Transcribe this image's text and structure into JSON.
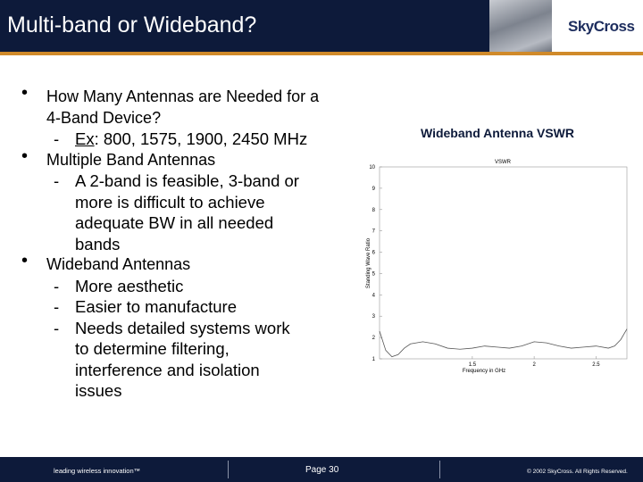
{
  "header": {
    "title": "Multi-band or Wideband?",
    "logo": "SkyCross"
  },
  "bullets": [
    {
      "text": "How Many Antennas are Needed for a 4-Band Device?",
      "sub": [
        {
          "prefix": "Ex",
          "text": ": 800, 1575, 1900, 2450 MHz"
        }
      ]
    },
    {
      "text": "Multiple Band Antennas",
      "sub": [
        {
          "text": "A 2-band is feasible, 3-band or more is difficult to achieve adequate BW in all needed bands"
        }
      ]
    },
    {
      "text": "Wideband Antennas",
      "sub": [
        {
          "text": "More aesthetic"
        },
        {
          "text": "Easier to manufacture"
        },
        {
          "text": "Needs detailed systems work to determine filtering, interference and isolation issues"
        }
      ]
    }
  ],
  "chart_data": {
    "type": "line",
    "title": "Wideband Antenna VSWR",
    "plot_title": "VSWR",
    "xlabel": "Frequency in GHz",
    "ylabel": "Standing Wave Ratio",
    "color": "#555555",
    "x": [
      0.75,
      0.8,
      0.85,
      0.9,
      0.95,
      1.0,
      1.1,
      1.2,
      1.3,
      1.4,
      1.5,
      1.6,
      1.7,
      1.8,
      1.9,
      2.0,
      2.1,
      2.2,
      2.3,
      2.4,
      2.5,
      2.6,
      2.65,
      2.7,
      2.75
    ],
    "values": [
      2.3,
      1.4,
      1.1,
      1.2,
      1.5,
      1.7,
      1.8,
      1.7,
      1.5,
      1.45,
      1.5,
      1.6,
      1.55,
      1.5,
      1.6,
      1.8,
      1.75,
      1.6,
      1.5,
      1.55,
      1.6,
      1.5,
      1.6,
      1.9,
      2.4
    ],
    "xlim": [
      0.75,
      2.75
    ],
    "xticks": [
      1.5,
      2,
      2.5
    ],
    "ylim": [
      1,
      10
    ],
    "yticks": [
      1,
      2,
      3,
      4,
      5,
      6,
      7,
      8,
      9,
      10
    ]
  },
  "footer": {
    "tagline": "leading wireless innovation™",
    "page": "Page 30",
    "copyright": "© 2002 SkyCross. All Rights Reserved."
  }
}
